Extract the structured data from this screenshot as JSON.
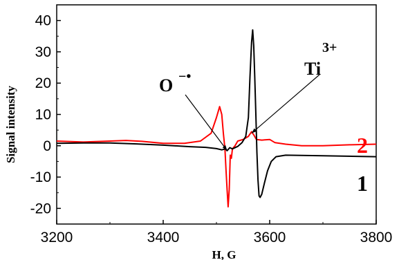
{
  "chart_data": {
    "type": "line",
    "xlabel": "H, G",
    "ylabel": "Signal intensity",
    "xlim": [
      3200,
      3800
    ],
    "ylim": [
      -25,
      45
    ],
    "x_ticks": [
      "3200",
      "3400",
      "3600",
      "3800"
    ],
    "y_ticks": [
      "-20",
      "-10",
      "0",
      "10",
      "20",
      "30",
      "40"
    ],
    "x_tick_values": [
      3200,
      3400,
      3600,
      3800
    ],
    "y_tick_values": [
      -20,
      -10,
      0,
      10,
      20,
      30,
      40
    ],
    "grid": false,
    "series": [
      {
        "name": "1",
        "color": "#000000",
        "points": [
          [
            3200,
            0.8
          ],
          [
            3250,
            0.9
          ],
          [
            3300,
            0.9
          ],
          [
            3350,
            0.6
          ],
          [
            3400,
            0.2
          ],
          [
            3450,
            -0.3
          ],
          [
            3480,
            -0.5
          ],
          [
            3500,
            -0.9
          ],
          [
            3510,
            -1.3
          ],
          [
            3517,
            -1.0
          ],
          [
            3520,
            -1.6
          ],
          [
            3525,
            -0.6
          ],
          [
            3530,
            -1.0
          ],
          [
            3540,
            -0.2
          ],
          [
            3548,
            1.0
          ],
          [
            3555,
            3.0
          ],
          [
            3560,
            9.0
          ],
          [
            3563,
            22.0
          ],
          [
            3566,
            33.0
          ],
          [
            3568,
            37.0
          ],
          [
            3570,
            32.0
          ],
          [
            3572,
            22.0
          ],
          [
            3574,
            10.0
          ],
          [
            3576,
            -2.0
          ],
          [
            3578,
            -11.0
          ],
          [
            3580,
            -16.0
          ],
          [
            3582,
            -16.5
          ],
          [
            3585,
            -15.5
          ],
          [
            3590,
            -12.0
          ],
          [
            3596,
            -8.0
          ],
          [
            3603,
            -5.0
          ],
          [
            3612,
            -3.5
          ],
          [
            3630,
            -3.0
          ],
          [
            3700,
            -3.2
          ],
          [
            3800,
            -3.5
          ]
        ]
      },
      {
        "name": "2",
        "color": "#ff0000",
        "points": [
          [
            3200,
            1.5
          ],
          [
            3250,
            1.2
          ],
          [
            3300,
            1.5
          ],
          [
            3330,
            1.7
          ],
          [
            3360,
            1.4
          ],
          [
            3400,
            0.8
          ],
          [
            3440,
            0.8
          ],
          [
            3470,
            1.5
          ],
          [
            3490,
            4.0
          ],
          [
            3500,
            9.0
          ],
          [
            3506,
            12.5
          ],
          [
            3510,
            10.0
          ],
          [
            3513,
            4.0
          ],
          [
            3516,
            -1.0
          ],
          [
            3518,
            -8.0
          ],
          [
            3520,
            -14.0
          ],
          [
            3522,
            -19.5
          ],
          [
            3524,
            -14.0
          ],
          [
            3526,
            -3.0
          ],
          [
            3528,
            -4.0
          ],
          [
            3530,
            -1.0
          ],
          [
            3535,
            0.0
          ],
          [
            3540,
            1.5
          ],
          [
            3550,
            2.0
          ],
          [
            3560,
            3.0
          ],
          [
            3566,
            4.5
          ],
          [
            3570,
            3.5
          ],
          [
            3575,
            2.0
          ],
          [
            3585,
            1.8
          ],
          [
            3600,
            2.0
          ],
          [
            3610,
            1.0
          ],
          [
            3630,
            0.5
          ],
          [
            3660,
            0.0
          ],
          [
            3700,
            0.0
          ],
          [
            3750,
            0.3
          ],
          [
            3800,
            0.5
          ]
        ]
      }
    ],
    "annotations": [
      {
        "id": "o-radical",
        "text": "O",
        "superscript": "−•",
        "points_to": [
          3520,
          -1.5
        ]
      },
      {
        "id": "ti3plus",
        "text": "Ti",
        "superscript": "3+",
        "points_to": [
          3566,
          4
        ]
      }
    ],
    "curve_labels": [
      {
        "text": "2",
        "color": "#ff0000"
      },
      {
        "text": "1",
        "color": "#000000"
      }
    ]
  }
}
